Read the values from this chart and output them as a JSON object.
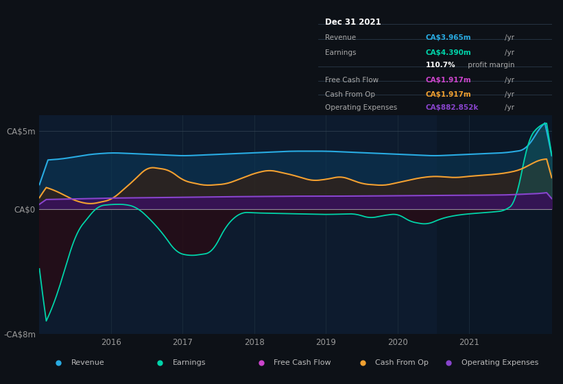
{
  "bg_color": "#0d1117",
  "plot_bg_color": "#0d1b2e",
  "title": "Dec 31 2021",
  "ylim": [
    -8000000,
    6000000
  ],
  "yticks": [
    -8000000,
    0,
    5000000
  ],
  "ytick_labels": [
    "-CA$8m",
    "CA$0",
    "CA$5m"
  ],
  "xtick_labels": [
    "2016",
    "2017",
    "2018",
    "2019",
    "2020",
    "2021"
  ],
  "colors": {
    "revenue": "#29abe2",
    "earnings": "#00d4aa",
    "free_cash_flow": "#cc44cc",
    "cash_from_op": "#f0a030",
    "operating_expenses": "#8844cc"
  },
  "legend_items": [
    {
      "label": "Revenue",
      "color": "#29abe2"
    },
    {
      "label": "Earnings",
      "color": "#00d4aa"
    },
    {
      "label": "Free Cash Flow",
      "color": "#cc44cc"
    },
    {
      "label": "Cash From Op",
      "color": "#f0a030"
    },
    {
      "label": "Operating Expenses",
      "color": "#8844cc"
    }
  ]
}
